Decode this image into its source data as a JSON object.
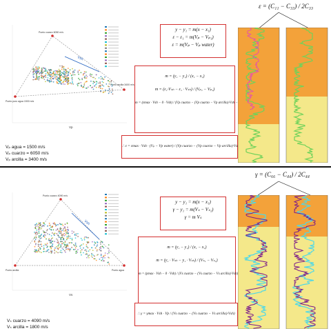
{
  "top": {
    "plot": {
      "xlabel": "Vp",
      "label_quartz": "Punto cuarzo 6050 m/s",
      "label_water": "Punto puro agua 1500 m/s",
      "label_clay": "Punto arcilla 3400 m/s",
      "vsh_label": "Vsh",
      "legend": [
        "WELL-1",
        "WELL-2",
        "WELL-3",
        "WELL-4",
        "WELL-5",
        "WELL-6",
        "WELL-7",
        "WELL-8",
        "WELL-9",
        "WELL-10",
        "WELL-11",
        "Punto cuarzo",
        "Punto arcilla",
        "Punto agua"
      ]
    },
    "velocities": [
      "Vₚ agua = 1500 m/s",
      "Vₚ cuarzo = 6050 m/s",
      "Vₚ arcilla = 3400 m/s"
    ],
    "eq_block1": [
      "y − y₁ = m(x − x₁)",
      "ε − ε₁ = m(Vₚ − Vₚ₁)",
      "ε = m(Vₚ − Vₚ water)"
    ],
    "eq_block2": [
      "m = (y₁ − y₁) / (x₁ − x₁)",
      "m = (ε₁·Vₛₕ − ε₁ · Vₛₕ) / (Vₚ₁ − Vₚ₁)",
      "m = (εmax · Vsh − 0 · Vsh) / (Vp cuarzo − (Vp cuarzo − Vp arcilla)·Vsh − Vp water)"
    ],
    "eq_block3": "∴ ε = εmax · Vsh · (Vₚ − Vp water) / (Vp cuarzo − (Vp cuarzo − Vp arcilla)·Vsh − Vp water)",
    "thomsen_formula": "ε = (C₁₁ − C₃₃) / 2C₃₃"
  },
  "bottom": {
    "plot": {
      "xlabel": "Vs",
      "label_quartz": "Punto cuarzo 4090 m/s",
      "label_water": "Punto arcilla",
      "label_clay": "Punto agua",
      "vsh_label": "Vsh"
    },
    "velocities": [
      "Vₛ cuarzo = 4090 m/s",
      "Vₛ arcilla = 1800 m/s"
    ],
    "eq_block1": [
      "y − y₁ = m(x − x₁)",
      "γ − y₁ = m(Vₛ − Vₛ₁)",
      "γ = m Vₛ"
    ],
    "eq_block2": [
      "m = (y₁ − y₁) / (x₁ − x₁)",
      "m = (y₁ · Vₛₕ − y₁ · Vₛₕ) / (Vₛ₁ − Vₛ₁)",
      "m = (γmax · Vsh − 0 · Vsh) / (Vs cuarzo − (Vs cuarzo − Vs arcilla)·Vsh)"
    ],
    "eq_block3": "∴ γ = γmax · Vsh · Vp / (Vs cuarzo − (Vs cuarzo − Vs arcilla)·Vsh)",
    "thomsen_formula": "γ = (C₆₆ − C₄₄) / 2C₄₄"
  },
  "colors": {
    "frame_red": "#d32f2f",
    "orange_zone": "#f3a23a",
    "yellow_zone": "#f4e88a",
    "green_log": "#6fd25a",
    "magenta_log": "#e040c8",
    "cyan_log": "#4dd8e8",
    "purple_log": "#7a1a8a"
  }
}
